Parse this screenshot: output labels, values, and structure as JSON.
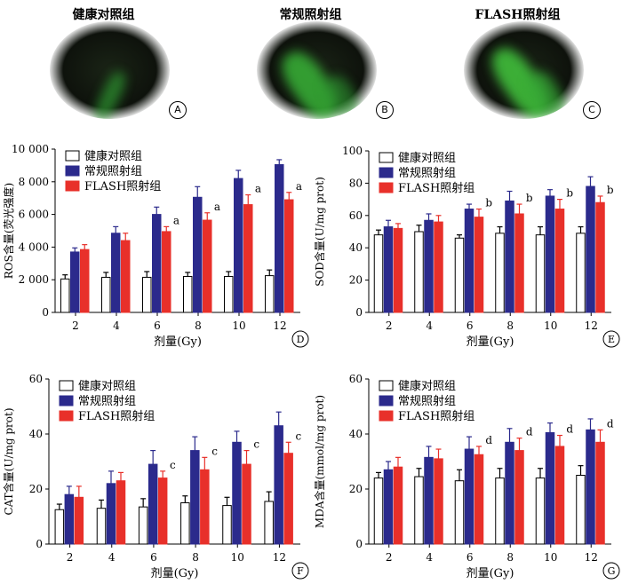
{
  "micrographs": [
    {
      "title": "健康对照组",
      "tag": "A"
    },
    {
      "title": "常规照射组",
      "tag": "B"
    },
    {
      "title": "FLASH照射组",
      "tag": "C"
    }
  ],
  "colors": {
    "control": "#ffffff",
    "conventional": "#2b2a8c",
    "flash": "#e8302a"
  },
  "chart_data": [
    {
      "type": "bar",
      "panel": "D",
      "ylabel": "ROS含量(荧光强度)",
      "xlabel": "剂量(Gy)",
      "categories": [
        "2",
        "4",
        "6",
        "8",
        "10",
        "12"
      ],
      "ylim": [
        0,
        10000
      ],
      "yticks": [
        "0",
        "2 000",
        "4 000",
        "6 000",
        "8 000",
        "10 000"
      ],
      "series": [
        {
          "name": "健康对照组",
          "values": [
            2050,
            2150,
            2150,
            2200,
            2200,
            2250
          ],
          "errors": [
            250,
            300,
            350,
            250,
            300,
            350
          ]
        },
        {
          "name": "常规照射组",
          "values": [
            3700,
            4850,
            6000,
            7050,
            8200,
            9050
          ],
          "errors": [
            250,
            400,
            450,
            650,
            500,
            300
          ]
        },
        {
          "name": "FLASH照射组",
          "values": [
            3850,
            4400,
            4950,
            5650,
            6600,
            6900
          ],
          "errors": [
            300,
            450,
            300,
            450,
            600,
            450
          ]
        }
      ],
      "annotations": [
        "",
        "",
        "a",
        "a",
        "a",
        "a"
      ]
    },
    {
      "type": "bar",
      "panel": "E",
      "ylabel": "SOD含量(U/mg prot)",
      "xlabel": "剂量(Gy)",
      "categories": [
        "2",
        "4",
        "6",
        "8",
        "10",
        "12"
      ],
      "ylim": [
        0,
        100
      ],
      "yticks": [
        "0",
        "20",
        "40",
        "60",
        "80",
        "100"
      ],
      "series": [
        {
          "name": "健康对照组",
          "values": [
            48,
            50,
            46,
            49,
            48,
            49
          ],
          "errors": [
            3,
            4,
            2,
            4,
            5,
            4
          ]
        },
        {
          "name": "常规照射组",
          "values": [
            53,
            57,
            64,
            69,
            72,
            78
          ],
          "errors": [
            4,
            4,
            3,
            6,
            4,
            6
          ]
        },
        {
          "name": "FLASH照射组",
          "values": [
            52,
            56,
            59,
            61,
            64,
            68
          ],
          "errors": [
            3,
            4,
            5,
            6,
            6,
            4
          ]
        }
      ],
      "annotations": [
        "",
        "",
        "b",
        "b",
        "b",
        "b"
      ]
    },
    {
      "type": "bar",
      "panel": "F",
      "ylabel": "CAT含量(U/mg prot)",
      "xlabel": "剂量(Gy)",
      "categories": [
        "2",
        "4",
        "6",
        "8",
        "10",
        "12"
      ],
      "ylim": [
        0,
        60
      ],
      "yticks": [
        "0",
        "20",
        "40",
        "60"
      ],
      "series": [
        {
          "name": "健康对照组",
          "values": [
            12.5,
            13,
            13.5,
            15,
            14,
            15.5
          ],
          "errors": [
            2,
            3,
            3,
            2.5,
            3,
            3.5
          ]
        },
        {
          "name": "常规照射组",
          "values": [
            18,
            22,
            29,
            34,
            37,
            43
          ],
          "errors": [
            3,
            4.5,
            5,
            5,
            4,
            5
          ]
        },
        {
          "name": "FLASH照射组",
          "values": [
            17,
            23,
            24,
            27,
            29,
            33
          ],
          "errors": [
            4,
            3,
            2.5,
            4.5,
            5,
            4
          ]
        }
      ],
      "annotations": [
        "",
        "",
        "c",
        "c",
        "c",
        "c"
      ]
    },
    {
      "type": "bar",
      "panel": "G",
      "ylabel": "MDA含量(mmol/mg prot)",
      "xlabel": "剂量(Gy)",
      "categories": [
        "2",
        "4",
        "6",
        "8",
        "10",
        "12"
      ],
      "ylim": [
        0,
        60
      ],
      "yticks": [
        "0",
        "20",
        "40",
        "60"
      ],
      "series": [
        {
          "name": "健康对照组",
          "values": [
            24,
            24.5,
            23,
            24,
            24,
            25
          ],
          "errors": [
            2,
            3,
            4,
            3.5,
            3.5,
            3.5
          ]
        },
        {
          "name": "常规照射组",
          "values": [
            27,
            31.5,
            34.5,
            37,
            40.5,
            41.5
          ],
          "errors": [
            3,
            4,
            4.5,
            5,
            3.5,
            4
          ]
        },
        {
          "name": "FLASH照射组",
          "values": [
            28,
            31,
            32.5,
            34,
            35.5,
            37
          ],
          "errors": [
            3.5,
            3.5,
            3,
            4.5,
            4,
            4.5
          ]
        }
      ],
      "annotations": [
        "",
        "",
        "d",
        "d",
        "d",
        "d"
      ]
    }
  ]
}
